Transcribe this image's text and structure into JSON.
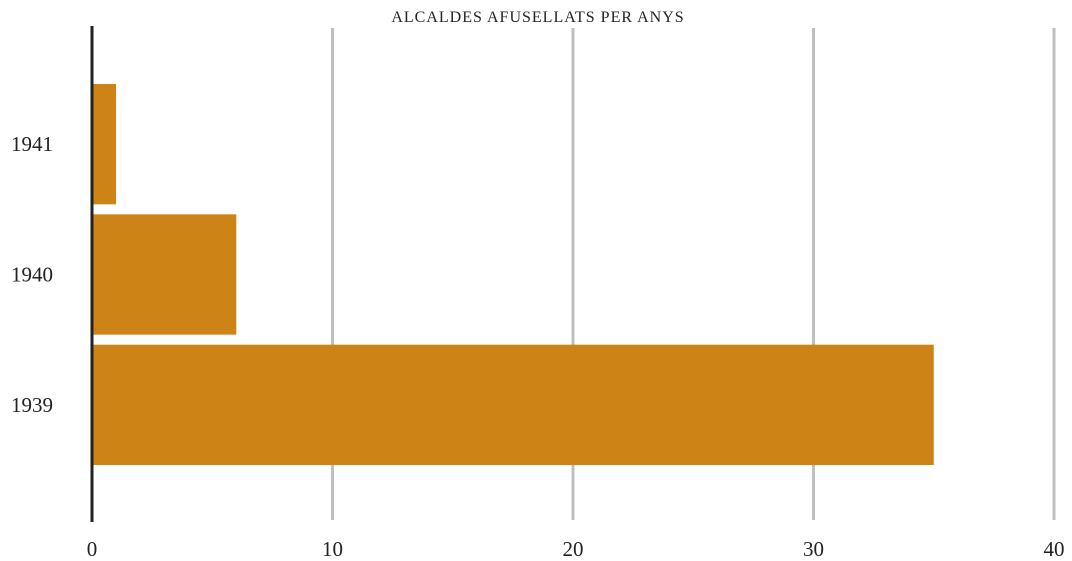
{
  "chart_data": {
    "type": "bar",
    "orientation": "horizontal",
    "title": "ALCALDES AFUSELLATS PER ANYS",
    "categories": [
      "1941",
      "1940",
      "1939"
    ],
    "values": [
      1,
      6,
      35
    ],
    "xlim": [
      0,
      40
    ],
    "xticks": [
      0,
      10,
      20,
      30,
      40
    ],
    "xlabel": "",
    "ylabel": "",
    "grid": "vertical",
    "legend": "none",
    "colors": {
      "bar": "#cd8316",
      "grid": "#bfbfbf",
      "axis": "#222222",
      "text": "#222222"
    }
  }
}
